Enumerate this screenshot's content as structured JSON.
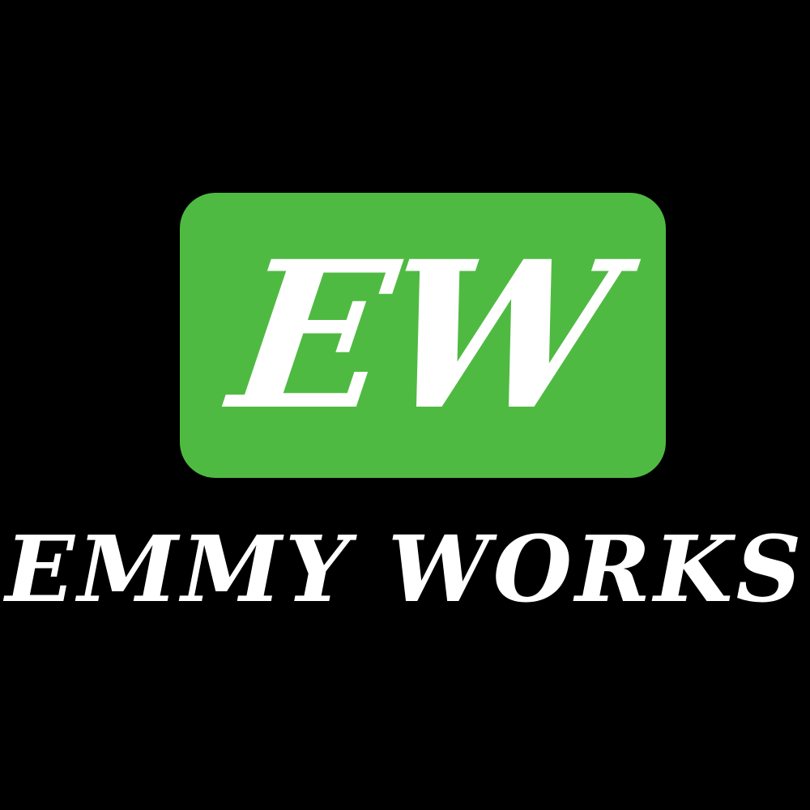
{
  "logo": {
    "monogram": "EW",
    "wordmark": "EMMY WORKS",
    "colors": {
      "background": "#000000",
      "badge": "#4fba42",
      "text": "#ffffff"
    }
  }
}
